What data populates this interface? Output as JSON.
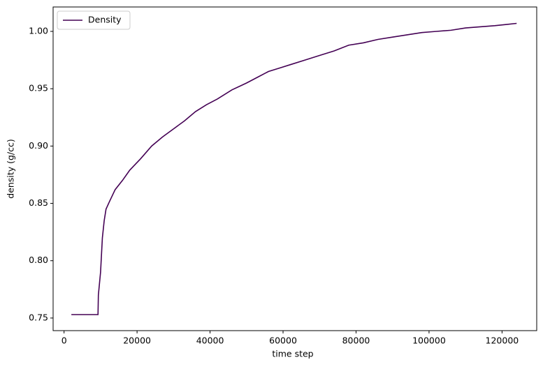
{
  "chart_data": {
    "type": "line",
    "xlabel": "time step",
    "ylabel": "density (g/cc)",
    "x": [
      2000,
      9300,
      9400,
      10000,
      10500,
      11000,
      11500,
      12500,
      14000,
      16000,
      18000,
      21000,
      24000,
      27000,
      30000,
      33000,
      36000,
      39000,
      42000,
      46000,
      50000,
      53000,
      56000,
      59000,
      62000,
      66000,
      70000,
      74000,
      78000,
      82000,
      86000,
      90000,
      94000,
      98000,
      102000,
      106000,
      110000,
      114000,
      118000,
      121000,
      124000
    ],
    "series": [
      {
        "name": "Density",
        "color": "#440154",
        "values": [
          0.753,
          0.753,
          0.77,
          0.79,
          0.82,
          0.835,
          0.845,
          0.852,
          0.862,
          0.87,
          0.879,
          0.889,
          0.9,
          0.908,
          0.915,
          0.922,
          0.93,
          0.936,
          0.941,
          0.949,
          0.955,
          0.96,
          0.965,
          0.968,
          0.971,
          0.975,
          0.979,
          0.983,
          0.988,
          0.99,
          0.993,
          0.995,
          0.997,
          0.999,
          1.0,
          1.001,
          1.003,
          1.004,
          1.005,
          1.006,
          1.007
        ]
      }
    ],
    "xlim": [
      -3000,
      129500
    ],
    "ylim": [
      0.739,
      1.0213
    ],
    "xticks": [
      0,
      20000,
      40000,
      60000,
      80000,
      100000,
      120000
    ],
    "yticks": [
      {
        "value": 0.75,
        "label": "0.75"
      },
      {
        "value": 0.8,
        "label": "0.80"
      },
      {
        "value": 0.85,
        "label": "0.85"
      },
      {
        "value": 0.9,
        "label": "0.90"
      },
      {
        "value": 0.95,
        "label": "0.95"
      },
      {
        "value": 1.0,
        "label": "1.00"
      }
    ],
    "legend": "upper left"
  }
}
